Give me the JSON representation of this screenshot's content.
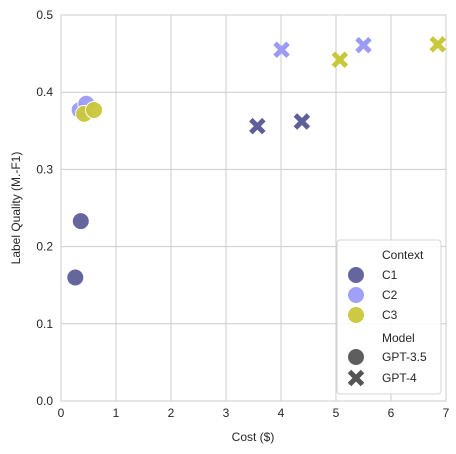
{
  "chart_data": {
    "type": "scatter",
    "xlabel": "Cost ($)",
    "ylabel": "Label Quality (M.-F1)",
    "xlim": [
      0,
      7
    ],
    "ylim": [
      0,
      0.5
    ],
    "xticks": [
      0,
      1,
      2,
      3,
      4,
      5,
      6,
      7
    ],
    "yticks": [
      0.0,
      0.1,
      0.2,
      0.3,
      0.4,
      0.5
    ],
    "xtick_labels": [
      "0",
      "1",
      "2",
      "3",
      "4",
      "5",
      "6",
      "7"
    ],
    "ytick_labels": [
      "0.0",
      "0.1",
      "0.2",
      "0.3",
      "0.4",
      "0.5"
    ],
    "grid": true,
    "context_colors": {
      "C1": "#5e5e9a",
      "C2": "#9b9bf5",
      "C3": "#c9c73a"
    },
    "marker_names": {
      "GPT-3.5": "circle",
      "GPT-4": "x"
    },
    "points": [
      {
        "context": "C1",
        "model": "GPT-3.5",
        "x": 0.26,
        "y": 0.16
      },
      {
        "context": "C1",
        "model": "GPT-3.5",
        "x": 0.36,
        "y": 0.233
      },
      {
        "context": "C2",
        "model": "GPT-3.5",
        "x": 0.34,
        "y": 0.377
      },
      {
        "context": "C2",
        "model": "GPT-3.5",
        "x": 0.46,
        "y": 0.385
      },
      {
        "context": "C3",
        "model": "GPT-3.5",
        "x": 0.42,
        "y": 0.372
      },
      {
        "context": "C3",
        "model": "GPT-3.5",
        "x": 0.6,
        "y": 0.377
      },
      {
        "context": "C1",
        "model": "GPT-4",
        "x": 3.57,
        "y": 0.356
      },
      {
        "context": "C1",
        "model": "GPT-4",
        "x": 4.38,
        "y": 0.362
      },
      {
        "context": "C2",
        "model": "GPT-4",
        "x": 4.01,
        "y": 0.455
      },
      {
        "context": "C2",
        "model": "GPT-4",
        "x": 5.5,
        "y": 0.461
      },
      {
        "context": "C3",
        "model": "GPT-4",
        "x": 5.07,
        "y": 0.442
      },
      {
        "context": "C3",
        "model": "GPT-4",
        "x": 6.85,
        "y": 0.462
      }
    ],
    "legend": {
      "placement": "lower-right",
      "context_title": "Context",
      "context_items": [
        "C1",
        "C2",
        "C3"
      ],
      "model_title": "Model",
      "model_items": [
        "GPT-3.5",
        "GPT-4"
      ],
      "model_marker_color": "#555555"
    }
  }
}
